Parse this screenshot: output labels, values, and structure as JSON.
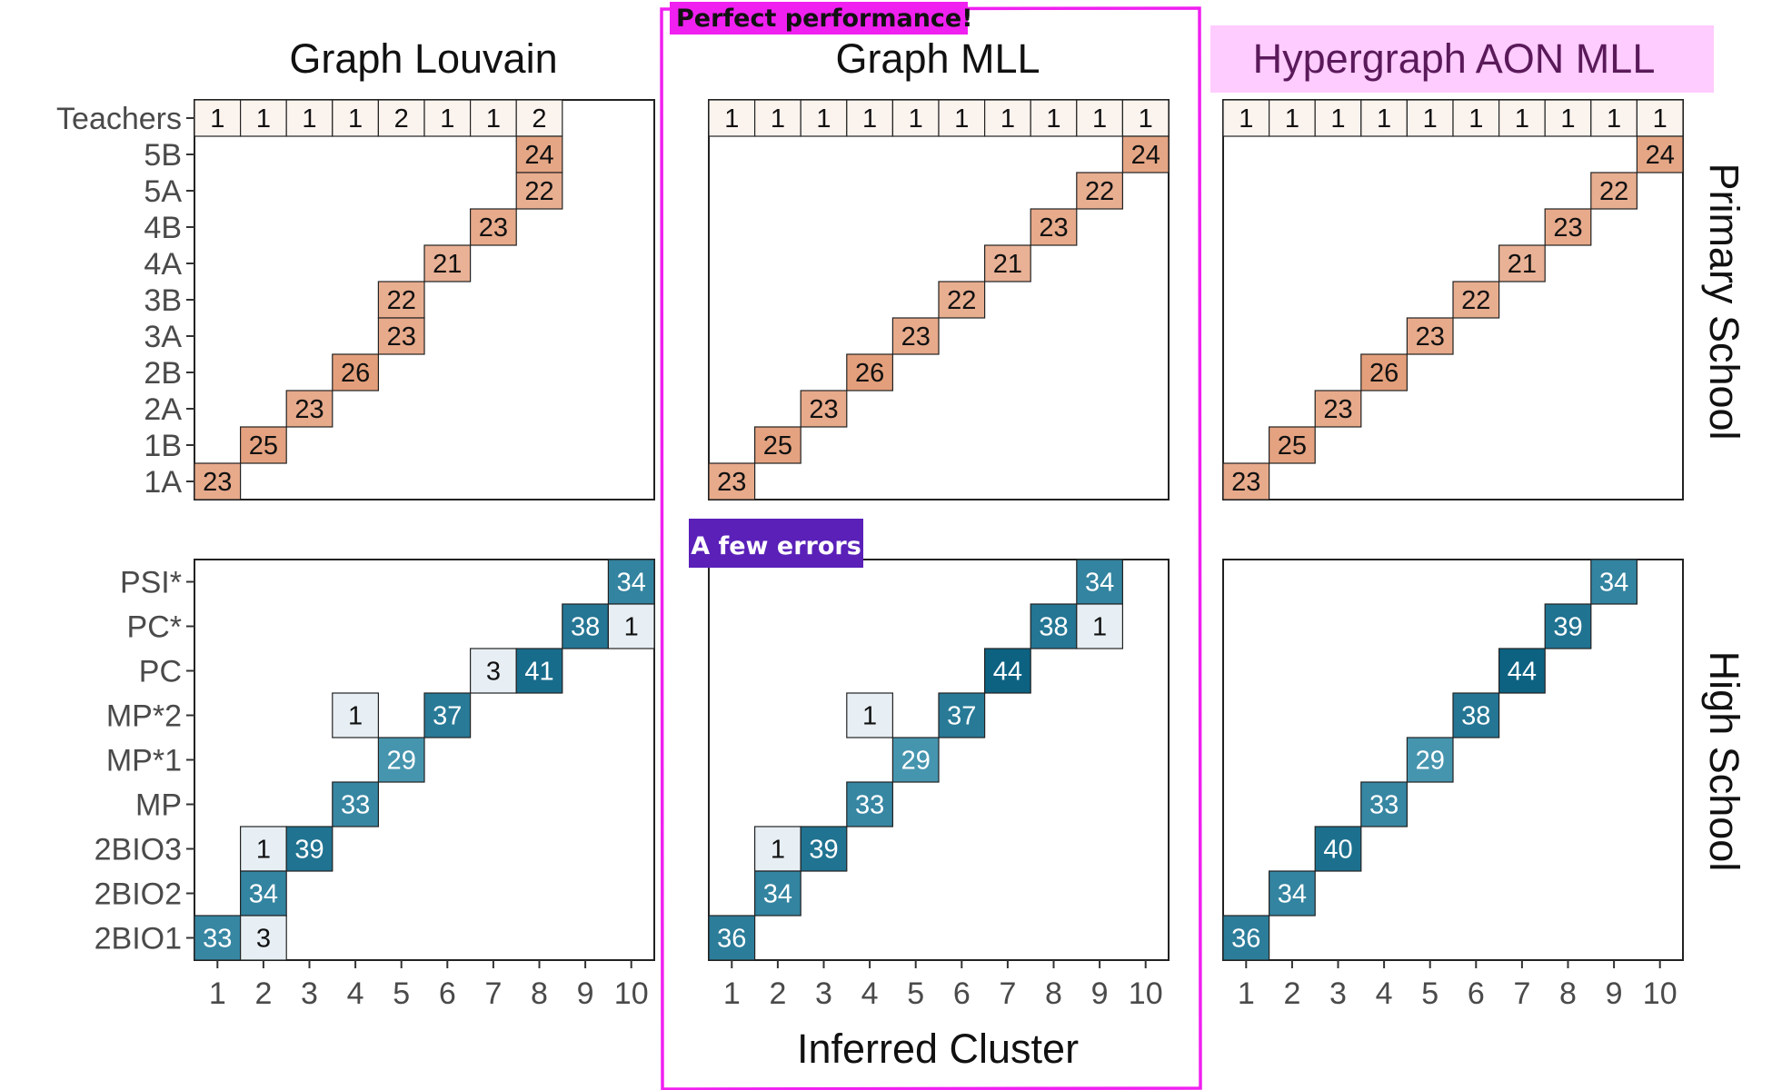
{
  "chart_data": [
    {
      "type": "heatmap",
      "column_title": "Graph Louvain",
      "row_strip": "Primary School",
      "rows": [
        "Teachers",
        "5B",
        "5A",
        "4B",
        "4A",
        "3B",
        "3A",
        "2B",
        "2A",
        "1B",
        "1A"
      ],
      "x_ticks": [
        "1",
        "2",
        "3",
        "4",
        "5",
        "6",
        "7",
        "8",
        "9",
        "10"
      ],
      "cells": [
        {
          "row": "Teachers",
          "col": 1,
          "value": 1
        },
        {
          "row": "Teachers",
          "col": 2,
          "value": 1
        },
        {
          "row": "Teachers",
          "col": 3,
          "value": 1
        },
        {
          "row": "Teachers",
          "col": 4,
          "value": 1
        },
        {
          "row": "Teachers",
          "col": 5,
          "value": 2
        },
        {
          "row": "Teachers",
          "col": 6,
          "value": 1
        },
        {
          "row": "Teachers",
          "col": 7,
          "value": 1
        },
        {
          "row": "Teachers",
          "col": 8,
          "value": 2
        },
        {
          "row": "5B",
          "col": 8,
          "value": 24
        },
        {
          "row": "5A",
          "col": 8,
          "value": 22
        },
        {
          "row": "4B",
          "col": 7,
          "value": 23
        },
        {
          "row": "4A",
          "col": 6,
          "value": 21
        },
        {
          "row": "3B",
          "col": 5,
          "value": 22
        },
        {
          "row": "3A",
          "col": 5,
          "value": 23
        },
        {
          "row": "2B",
          "col": 4,
          "value": 26
        },
        {
          "row": "2A",
          "col": 3,
          "value": 23
        },
        {
          "row": "1B",
          "col": 2,
          "value": 25
        },
        {
          "row": "1A",
          "col": 1,
          "value": 23
        }
      ]
    },
    {
      "type": "heatmap",
      "column_title": "Graph MLL",
      "row_strip": "Primary School",
      "rows": [
        "Teachers",
        "5B",
        "5A",
        "4B",
        "4A",
        "3B",
        "3A",
        "2B",
        "2A",
        "1B",
        "1A"
      ],
      "x_ticks": [
        "1",
        "2",
        "3",
        "4",
        "5",
        "6",
        "7",
        "8",
        "9",
        "10"
      ],
      "cells": [
        {
          "row": "Teachers",
          "col": 1,
          "value": 1
        },
        {
          "row": "Teachers",
          "col": 2,
          "value": 1
        },
        {
          "row": "Teachers",
          "col": 3,
          "value": 1
        },
        {
          "row": "Teachers",
          "col": 4,
          "value": 1
        },
        {
          "row": "Teachers",
          "col": 5,
          "value": 1
        },
        {
          "row": "Teachers",
          "col": 6,
          "value": 1
        },
        {
          "row": "Teachers",
          "col": 7,
          "value": 1
        },
        {
          "row": "Teachers",
          "col": 8,
          "value": 1
        },
        {
          "row": "Teachers",
          "col": 9,
          "value": 1
        },
        {
          "row": "Teachers",
          "col": 10,
          "value": 1
        },
        {
          "row": "5B",
          "col": 10,
          "value": 24
        },
        {
          "row": "5A",
          "col": 9,
          "value": 22
        },
        {
          "row": "4B",
          "col": 8,
          "value": 23
        },
        {
          "row": "4A",
          "col": 7,
          "value": 21
        },
        {
          "row": "3B",
          "col": 6,
          "value": 22
        },
        {
          "row": "3A",
          "col": 5,
          "value": 23
        },
        {
          "row": "2B",
          "col": 4,
          "value": 26
        },
        {
          "row": "2A",
          "col": 3,
          "value": 23
        },
        {
          "row": "1B",
          "col": 2,
          "value": 25
        },
        {
          "row": "1A",
          "col": 1,
          "value": 23
        }
      ]
    },
    {
      "type": "heatmap",
      "column_title": "Hypergraph AON MLL",
      "row_strip": "Primary School",
      "rows": [
        "Teachers",
        "5B",
        "5A",
        "4B",
        "4A",
        "3B",
        "3A",
        "2B",
        "2A",
        "1B",
        "1A"
      ],
      "x_ticks": [
        "1",
        "2",
        "3",
        "4",
        "5",
        "6",
        "7",
        "8",
        "9",
        "10"
      ],
      "cells": [
        {
          "row": "Teachers",
          "col": 1,
          "value": 1
        },
        {
          "row": "Teachers",
          "col": 2,
          "value": 1
        },
        {
          "row": "Teachers",
          "col": 3,
          "value": 1
        },
        {
          "row": "Teachers",
          "col": 4,
          "value": 1
        },
        {
          "row": "Teachers",
          "col": 5,
          "value": 1
        },
        {
          "row": "Teachers",
          "col": 6,
          "value": 1
        },
        {
          "row": "Teachers",
          "col": 7,
          "value": 1
        },
        {
          "row": "Teachers",
          "col": 8,
          "value": 1
        },
        {
          "row": "Teachers",
          "col": 9,
          "value": 1
        },
        {
          "row": "Teachers",
          "col": 10,
          "value": 1
        },
        {
          "row": "5B",
          "col": 10,
          "value": 24
        },
        {
          "row": "5A",
          "col": 9,
          "value": 22
        },
        {
          "row": "4B",
          "col": 8,
          "value": 23
        },
        {
          "row": "4A",
          "col": 7,
          "value": 21
        },
        {
          "row": "3B",
          "col": 6,
          "value": 22
        },
        {
          "row": "3A",
          "col": 5,
          "value": 23
        },
        {
          "row": "2B",
          "col": 4,
          "value": 26
        },
        {
          "row": "2A",
          "col": 3,
          "value": 23
        },
        {
          "row": "1B",
          "col": 2,
          "value": 25
        },
        {
          "row": "1A",
          "col": 1,
          "value": 23
        }
      ]
    },
    {
      "type": "heatmap",
      "column_title": "Graph Louvain",
      "row_strip": "High School",
      "rows": [
        "PSI*",
        "PC*",
        "PC",
        "MP*2",
        "MP*1",
        "MP",
        "2BIO3",
        "2BIO2",
        "2BIO1"
      ],
      "x_ticks": [
        "1",
        "2",
        "3",
        "4",
        "5",
        "6",
        "7",
        "8",
        "9",
        "10"
      ],
      "cells": [
        {
          "row": "PSI*",
          "col": 10,
          "value": 34
        },
        {
          "row": "PC*",
          "col": 9,
          "value": 38
        },
        {
          "row": "PC*",
          "col": 10,
          "value": 1
        },
        {
          "row": "PC",
          "col": 7,
          "value": 3
        },
        {
          "row": "PC",
          "col": 8,
          "value": 41
        },
        {
          "row": "MP*2",
          "col": 4,
          "value": 1
        },
        {
          "row": "MP*2",
          "col": 6,
          "value": 37
        },
        {
          "row": "MP*1",
          "col": 5,
          "value": 29
        },
        {
          "row": "MP",
          "col": 4,
          "value": 33
        },
        {
          "row": "2BIO3",
          "col": 2,
          "value": 1
        },
        {
          "row": "2BIO3",
          "col": 3,
          "value": 39
        },
        {
          "row": "2BIO2",
          "col": 2,
          "value": 34
        },
        {
          "row": "2BIO1",
          "col": 1,
          "value": 33
        },
        {
          "row": "2BIO1",
          "col": 2,
          "value": 3
        }
      ]
    },
    {
      "type": "heatmap",
      "column_title": "Graph MLL",
      "row_strip": "High School",
      "rows": [
        "PSI*",
        "PC*",
        "PC",
        "MP*2",
        "MP*1",
        "MP",
        "2BIO3",
        "2BIO2",
        "2BIO1"
      ],
      "x_ticks": [
        "1",
        "2",
        "3",
        "4",
        "5",
        "6",
        "7",
        "8",
        "9",
        "10"
      ],
      "cells": [
        {
          "row": "PSI*",
          "col": 9,
          "value": 34
        },
        {
          "row": "PC*",
          "col": 8,
          "value": 38
        },
        {
          "row": "PC*",
          "col": 9,
          "value": 1
        },
        {
          "row": "PC",
          "col": 7,
          "value": 44
        },
        {
          "row": "MP*2",
          "col": 4,
          "value": 1
        },
        {
          "row": "MP*2",
          "col": 6,
          "value": 37
        },
        {
          "row": "MP*1",
          "col": 5,
          "value": 29
        },
        {
          "row": "MP",
          "col": 4,
          "value": 33
        },
        {
          "row": "2BIO3",
          "col": 2,
          "value": 1
        },
        {
          "row": "2BIO3",
          "col": 3,
          "value": 39
        },
        {
          "row": "2BIO2",
          "col": 2,
          "value": 34
        },
        {
          "row": "2BIO1",
          "col": 1,
          "value": 36
        }
      ]
    },
    {
      "type": "heatmap",
      "column_title": "Hypergraph AON MLL",
      "row_strip": "High School",
      "rows": [
        "PSI*",
        "PC*",
        "PC",
        "MP*2",
        "MP*1",
        "MP",
        "2BIO3",
        "2BIO2",
        "2BIO1"
      ],
      "x_ticks": [
        "1",
        "2",
        "3",
        "4",
        "5",
        "6",
        "7",
        "8",
        "9",
        "10"
      ],
      "cells": [
        {
          "row": "PSI*",
          "col": 9,
          "value": 34
        },
        {
          "row": "PC*",
          "col": 8,
          "value": 39
        },
        {
          "row": "PC",
          "col": 7,
          "value": 44
        },
        {
          "row": "MP*2",
          "col": 6,
          "value": 38
        },
        {
          "row": "MP*1",
          "col": 5,
          "value": 29
        },
        {
          "row": "MP",
          "col": 4,
          "value": 33
        },
        {
          "row": "2BIO3",
          "col": 3,
          "value": 40
        },
        {
          "row": "2BIO2",
          "col": 2,
          "value": 34
        },
        {
          "row": "2BIO1",
          "col": 1,
          "value": 36
        }
      ]
    }
  ],
  "xlabel": "Inferred Cluster",
  "strips": {
    "primary": "Primary School",
    "high": "High School"
  },
  "column_titles": [
    "Graph Louvain",
    "Graph MLL",
    "Hypergraph AON MLL"
  ],
  "callouts": {
    "perfect": "Perfect performance!",
    "errors": "A few errors"
  },
  "colors": {
    "primary_fill_max": "#e29b76",
    "primary_fill_min": "#fbf3ee",
    "high_fill_max": "#0d6282",
    "high_fill_min": "#e7eff4",
    "callout_magenta": "#f020f0",
    "callout_purple": "#5a20b8",
    "title_highlight": "#ffccff",
    "title_highlight_text": "#5a1a5a"
  }
}
